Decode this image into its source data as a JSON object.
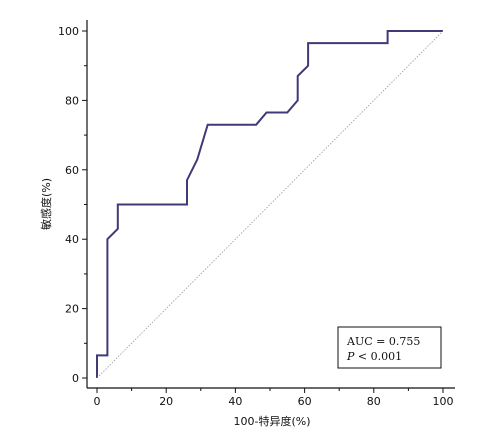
{
  "chart_data": {
    "type": "line",
    "title": "",
    "xlabel": "100-特异度(%)",
    "ylabel": "敏感度(%)",
    "xlim": [
      0,
      100
    ],
    "ylim": [
      0,
      100
    ],
    "xticks": [
      0,
      20,
      40,
      60,
      80,
      100
    ],
    "yticks": [
      0,
      20,
      40,
      60,
      80,
      100
    ],
    "grid": false,
    "series": [
      {
        "color": "#3f3a78",
        "x": [
          0,
          0,
          3,
          3,
          6,
          6,
          26,
          26,
          29,
          32,
          46,
          49,
          55,
          58,
          58,
          61,
          61,
          84,
          84,
          100
        ],
        "y": [
          0,
          6.5,
          6.5,
          40,
          43,
          50,
          50,
          57,
          63,
          73,
          73,
          76.5,
          76.5,
          80,
          87,
          90,
          96.5,
          96.5,
          100,
          100
        ]
      },
      {
        "style": "reference-diagonal",
        "color": "#9a9a9a",
        "x": [
          0,
          100
        ],
        "y": [
          0,
          100
        ]
      }
    ],
    "annotation": {
      "auc_text": "AUC = 0.755",
      "p_label": "P",
      "p_text": " < 0.001"
    }
  }
}
